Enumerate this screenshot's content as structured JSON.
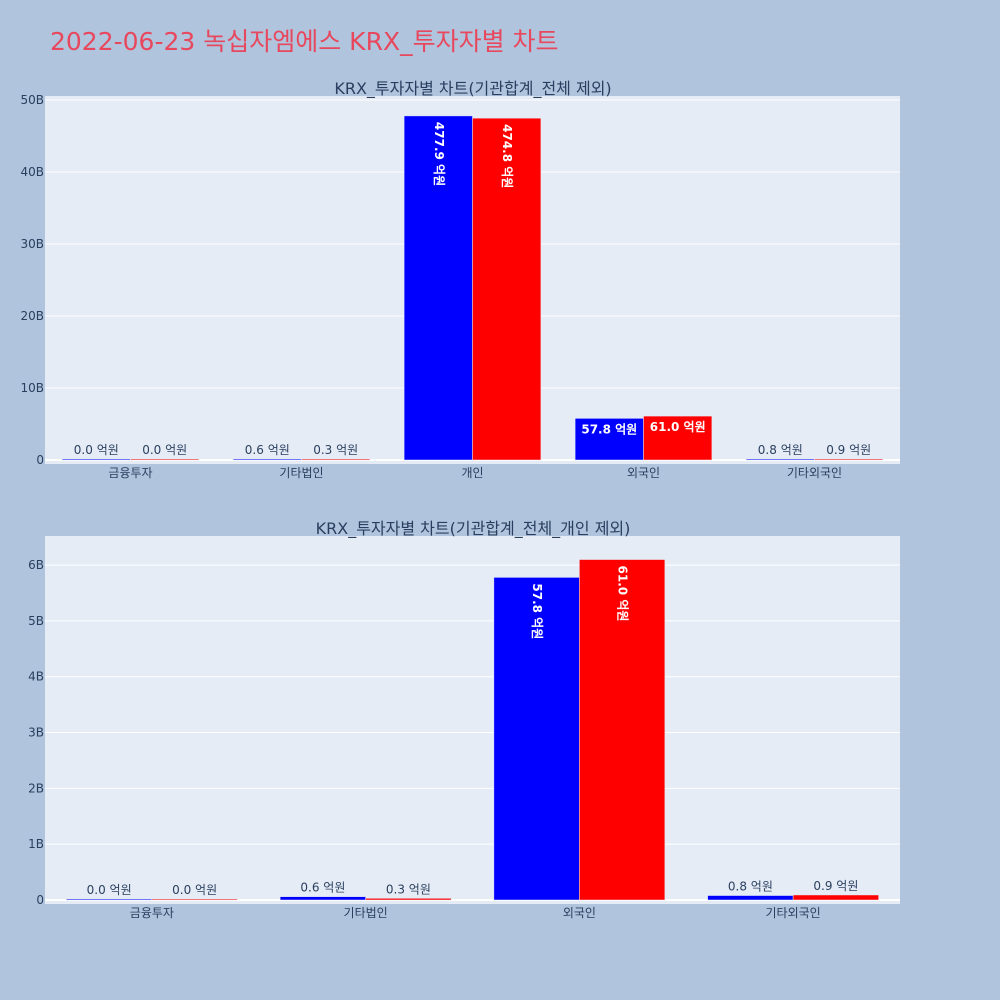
{
  "page_title": "2022-06-23 녹십자엠에스 KRX_투자자별 차트",
  "colors": {
    "page_bg": "#b0c4de",
    "plot_bg": "#e5ecf6",
    "title": "#e8485d",
    "series_a": "#0000ff",
    "series_b": "#ff0000",
    "text": "#2a3f5f",
    "grid": "#ffffff"
  },
  "chart_data": [
    {
      "type": "bar",
      "title": "KRX_투자자별 차트(기관합계_전체 제외)",
      "categories": [
        "금융투자",
        "기타법인",
        "개인",
        "외국인",
        "기타외국인"
      ],
      "series": [
        {
          "color": "#0000ff",
          "values": [
            0.002,
            0.06,
            47.79,
            5.78,
            0.08
          ],
          "labels": [
            "0.0 억원",
            "0.6 억원",
            "477.9 억원",
            "57.8 억원",
            "0.8 억원"
          ]
        },
        {
          "color": "#ff0000",
          "values": [
            0.002,
            0.03,
            47.48,
            6.1,
            0.09
          ],
          "labels": [
            "0.0 억원",
            "0.3 억원",
            "474.8 억원",
            "61.0 억원",
            "0.9 억원"
          ]
        }
      ],
      "ylim": [
        0,
        50
      ],
      "yticks": [
        0,
        10,
        20,
        30,
        40,
        50
      ],
      "ytick_labels": [
        "0",
        "10B",
        "20B",
        "30B",
        "40B",
        "50B"
      ],
      "grid": true
    },
    {
      "type": "bar",
      "title": "KRX_투자자별 차트(기관합계_전체_개인 제외)",
      "categories": [
        "금융투자",
        "기타법인",
        "외국인",
        "기타외국인"
      ],
      "series": [
        {
          "color": "#0000ff",
          "values": [
            0.002,
            0.06,
            5.78,
            0.08
          ],
          "labels": [
            "0.0 억원",
            "0.6 억원",
            "57.8 억원",
            "0.8 억원"
          ]
        },
        {
          "color": "#ff0000",
          "values": [
            0.002,
            0.03,
            6.1,
            0.09
          ],
          "labels": [
            "0.0 억원",
            "0.3 억원",
            "61.0 억원",
            "0.9 억원"
          ]
        }
      ],
      "ylim": [
        0,
        6.45
      ],
      "yticks": [
        0,
        1,
        2,
        3,
        4,
        5,
        6
      ],
      "ytick_labels": [
        "0",
        "1B",
        "2B",
        "3B",
        "4B",
        "5B",
        "6B"
      ],
      "grid": true
    }
  ]
}
